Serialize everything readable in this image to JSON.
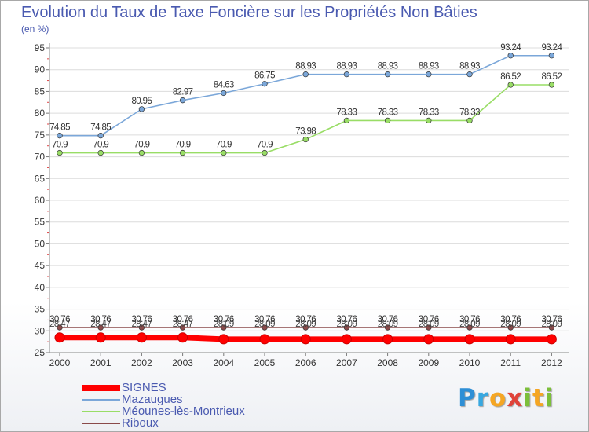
{
  "title": "Evolution du Taux de Taxe Foncière sur les Propriétés Non Bâties",
  "unit_label": "(en %)",
  "brand": {
    "letters": [
      {
        "char": "P",
        "color": "#2e8fd6"
      },
      {
        "char": "r",
        "color": "#38a8e0"
      },
      {
        "char": "o",
        "color": "#f5a623"
      },
      {
        "char": "x",
        "color": "#e0433a"
      },
      {
        "char": "i",
        "color": "#7cbf3a"
      },
      {
        "char": "t",
        "color": "#f5a623"
      },
      {
        "char": "i",
        "color": "#7cbf3a"
      }
    ]
  },
  "chart_data": {
    "type": "line",
    "title": "Evolution du Taux de Taxe Foncière sur les Propriétés Non Bâties",
    "ylabel": "(en %)",
    "xlabel": "",
    "ylim": [
      25,
      95
    ],
    "yticks": [
      25,
      30,
      35,
      40,
      45,
      50,
      55,
      60,
      65,
      70,
      75,
      80,
      85,
      90,
      95
    ],
    "categories": [
      "2000",
      "2001",
      "2002",
      "2003",
      "2004",
      "2005",
      "2006",
      "2007",
      "2008",
      "2009",
      "2010",
      "2011",
      "2012"
    ],
    "grid": "horizontal",
    "legend_position": "bottom-left",
    "series": [
      {
        "name": "SIGNES",
        "color": "#ff0000",
        "values": [
          28.47,
          28.47,
          28.47,
          28.47,
          28.09,
          28.09,
          28.09,
          28.09,
          28.09,
          28.09,
          28.09,
          28.09,
          28.09
        ],
        "labels": [
          "28.47",
          "28.47",
          "28.47",
          "28.47",
          "28.09",
          "28.09",
          "28.09",
          "28.09",
          "28.09",
          "28.09",
          "28.09",
          "28.09",
          "28.09"
        ]
      },
      {
        "name": "Mazaugues",
        "color": "#7ba7d9",
        "values": [
          74.85,
          74.85,
          80.95,
          82.97,
          84.63,
          86.75,
          88.93,
          88.93,
          88.93,
          88.93,
          88.93,
          93.24,
          93.24
        ],
        "labels": [
          "74.85",
          "74.85",
          "80.95",
          "82.97",
          "84.63",
          "86.75",
          "88.93",
          "88.93",
          "88.93",
          "88.93",
          "88.93",
          "93.24",
          "93.24"
        ]
      },
      {
        "name": "Méounes-lès-Montrieux",
        "color": "#99dd66",
        "values": [
          70.9,
          70.9,
          70.9,
          70.9,
          70.9,
          70.9,
          73.98,
          78.33,
          78.33,
          78.33,
          78.33,
          86.52,
          86.52
        ],
        "labels": [
          "70.9",
          "70.9",
          "70.9",
          "70.9",
          "70.9",
          "70.9",
          "73.98",
          "78.33",
          "78.33",
          "78.33",
          "78.33",
          "86.52",
          "86.52"
        ]
      },
      {
        "name": "Riboux",
        "color": "#8a4a4a",
        "values": [
          30.76,
          30.76,
          30.76,
          30.76,
          30.76,
          30.76,
          30.76,
          30.76,
          30.76,
          30.76,
          30.76,
          30.76,
          30.76
        ],
        "labels": [
          "30.76",
          "30.76",
          "30.76",
          "30.76",
          "30.76",
          "30.76",
          "30.76",
          "30.76",
          "30.76",
          "30.76",
          "30.76",
          "30.76",
          "30.76"
        ]
      }
    ]
  }
}
